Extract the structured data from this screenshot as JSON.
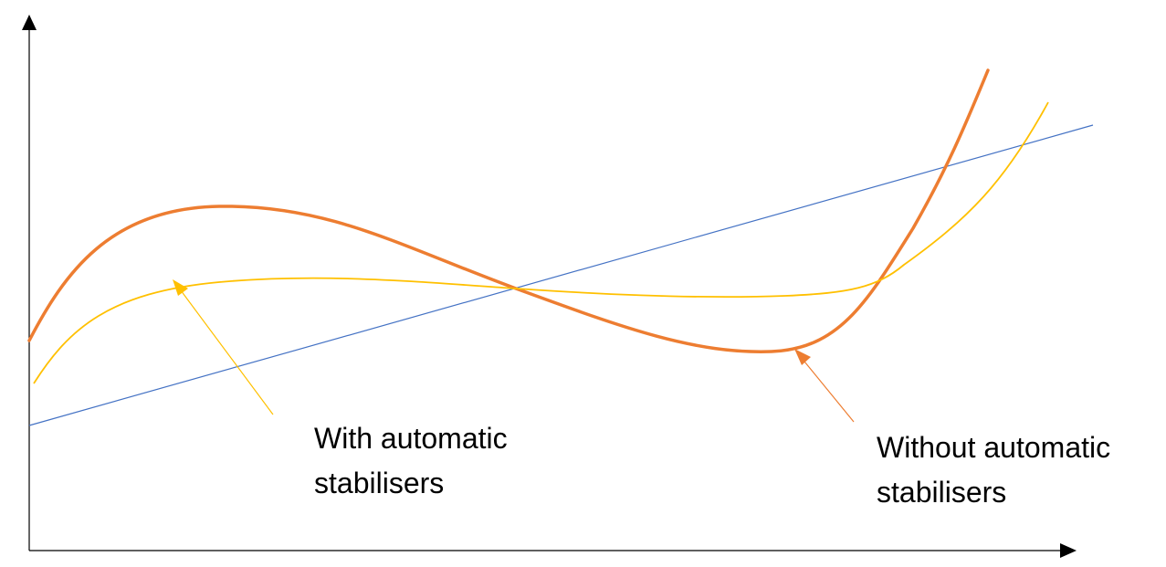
{
  "colors": {
    "axis": "#000000",
    "trend": "#4472C4",
    "with_stabilisers": "#FFC000",
    "without_stabilisers": "#ED7D31"
  },
  "labels": {
    "with_stabilisers": {
      "line1": "With automatic",
      "line2": "stabilisers"
    },
    "without_stabilisers": {
      "line1": "Without automatic",
      "line2": "stabilisers"
    }
  }
}
